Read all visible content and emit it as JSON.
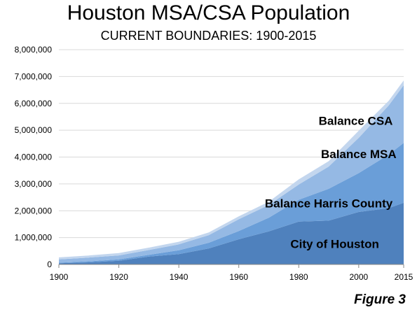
{
  "chart_data": {
    "type": "area",
    "stacked": true,
    "title": "Houston MSA/CSA Population",
    "subtitle": "CURRENT BOUNDARIES: 1900-2015",
    "figure_label": "Figure 3",
    "x": [
      1900,
      1910,
      1920,
      1930,
      1940,
      1950,
      1960,
      1970,
      1980,
      1990,
      2000,
      2010,
      2015
    ],
    "series": [
      {
        "name": "City of Houston",
        "color": "#4f81bd",
        "values": [
          45000,
          79000,
          138000,
          292000,
          385000,
          596000,
          938000,
          1233000,
          1595000,
          1631000,
          1954000,
          2099000,
          2296000
        ]
      },
      {
        "name": "Balance Harris County",
        "color": "#6a9ed8",
        "values": [
          19000,
          37000,
          49000,
          68000,
          144000,
          211000,
          305000,
          508000,
          815000,
          1187000,
          1447000,
          1993000,
          2234000
        ]
      },
      {
        "name": "Balance MSA",
        "color": "#95b9e4",
        "values": [
          125000,
          140000,
          150000,
          176000,
          219000,
          284000,
          440000,
          474000,
          569000,
          827000,
          1314000,
          1828000,
          2147000
        ]
      },
      {
        "name": "Balance CSA",
        "color": "#c3d6ee",
        "values": [
          75000,
          78000,
          85000,
          90000,
          95000,
          100000,
          110000,
          120000,
          190000,
          200000,
          265000,
          176000,
          176000
        ]
      }
    ],
    "label_positions": [
      "City of Houston",
      "Balance Harris County",
      "Balance MSA",
      "Balance CSA"
    ],
    "ylim": [
      0,
      8000000
    ],
    "y_ticks": [
      0,
      1000000,
      2000000,
      3000000,
      4000000,
      5000000,
      6000000,
      7000000,
      8000000
    ],
    "y_tick_labels": [
      "0",
      "1,000,000",
      "2,000,000",
      "3,000,000",
      "4,000,000",
      "5,000,000",
      "6,000,000",
      "7,000,000",
      "8,000,000"
    ],
    "x_ticks": [
      1900,
      1920,
      1940,
      1960,
      1980,
      2000,
      2015
    ],
    "x_tick_labels": [
      "1900",
      "1920",
      "1940",
      "1960",
      "1980",
      "2000",
      "2015"
    ],
    "grid": true,
    "legend": "none"
  }
}
